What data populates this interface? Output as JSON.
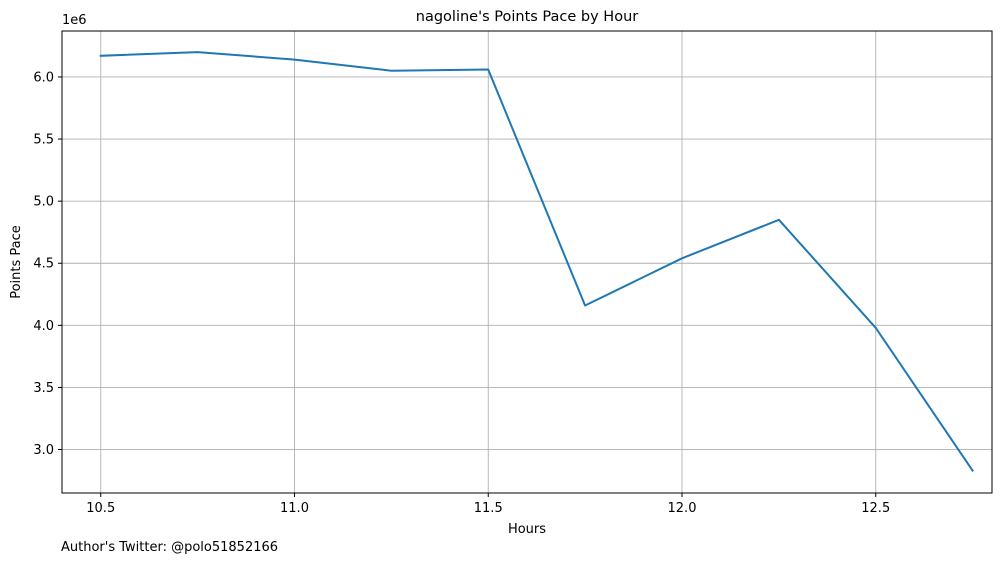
{
  "chart_data": {
    "type": "line",
    "title": "nagoline's Points Pace by Hour",
    "xlabel": "Hours",
    "ylabel": "Points Pace",
    "y_offset_label": "1e6",
    "xlim": [
      10.4,
      12.8
    ],
    "ylim": [
      2.65,
      6.37
    ],
    "x_ticks": [
      10.5,
      11.0,
      11.5,
      12.0,
      12.5
    ],
    "x_tick_labels": [
      "10.5",
      "11.0",
      "11.5",
      "12.0",
      "12.5"
    ],
    "y_ticks": [
      3.0,
      3.5,
      4.0,
      4.5,
      5.0,
      5.5,
      6.0
    ],
    "y_tick_labels": [
      "3.0",
      "3.5",
      "4.0",
      "4.5",
      "5.0",
      "5.5",
      "6.0"
    ],
    "grid": true,
    "series": [
      {
        "color": "#1f77b4",
        "x": [
          10.5,
          10.75,
          11.0,
          11.25,
          11.5,
          11.75,
          12.0,
          12.25,
          12.5,
          12.75
        ],
        "values": [
          6.17,
          6.2,
          6.14,
          6.05,
          6.06,
          4.16,
          4.54,
          4.85,
          3.98,
          2.83
        ]
      }
    ]
  },
  "footer": {
    "author_text": "Author's Twitter: @polo51852166"
  }
}
